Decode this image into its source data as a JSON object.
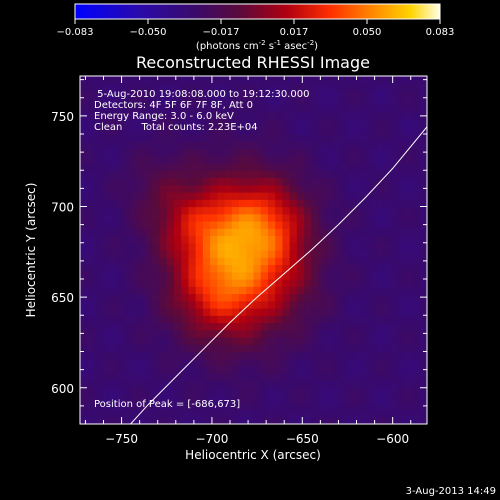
{
  "chart_data": {
    "type": "heatmap",
    "title": "Reconstructed RHESSI Image",
    "xlabel": "Heliocentric X (arcsec)",
    "ylabel": "Heliocentric Y (arcsec)",
    "xlim": [
      -773,
      -581
    ],
    "ylim": [
      580,
      772
    ],
    "x_ticks": [
      -750,
      -700,
      -650,
      -600
    ],
    "y_ticks": [
      600,
      650,
      700,
      750
    ],
    "colorbar": {
      "min": -0.083,
      "max": 0.083,
      "ticks": [
        "-0.083",
        "-0.050",
        "-0.017",
        "0.017",
        "0.050",
        "0.083"
      ],
      "unit_text": "(photons cm",
      "unit_text_2": " s",
      "unit_text_3": " asec",
      "unit_close": ")",
      "unit_sup1": "-2",
      "unit_sup2": "-1",
      "unit_sup3": "-2"
    },
    "peak": {
      "x": -686,
      "y": 673,
      "value": 0.083
    },
    "sources": [
      {
        "x": -686,
        "y": 673,
        "sx": 22,
        "sy": 28,
        "amp": 0.075
      },
      {
        "x": -668,
        "y": 692,
        "sx": 16,
        "sy": 16,
        "amp": 0.028
      },
      {
        "x": -712,
        "y": 690,
        "sx": 16,
        "sy": 14,
        "amp": 0.022
      },
      {
        "x": -700,
        "y": 650,
        "sx": 18,
        "sy": 16,
        "amp": 0.02
      },
      {
        "x": -728,
        "y": 712,
        "sx": 14,
        "sy": 14,
        "amp": 0.012
      },
      {
        "x": -655,
        "y": 660,
        "sx": 14,
        "sy": 18,
        "amp": 0.01
      }
    ],
    "background": -0.03,
    "limb_curve": {
      "x": [
        -745,
        -735,
        -720,
        -705,
        -690,
        -675,
        -660,
        -645,
        -630,
        -615,
        -600,
        -581
      ],
      "y": [
        580,
        591,
        606,
        621,
        636,
        650,
        663,
        676,
        690,
        705,
        721,
        744
      ]
    },
    "annotations": [
      " 5-Aug-2010 19:08:08.000 to 19:12:30.000",
      "Detectors: 4F 5F 6F 7F 8F, Att 0",
      "Energy Range: 3.0 - 6.0 keV",
      "Clean      Total counts: 2.23E+04"
    ],
    "peak_label": "Position of Peak = [-686,673]",
    "timestamp": "3-Aug-2013 14:49"
  }
}
